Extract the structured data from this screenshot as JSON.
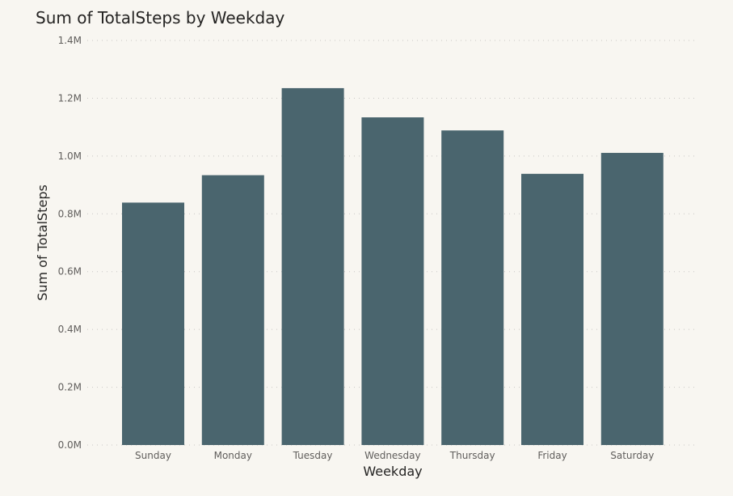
{
  "chart_data": {
    "type": "bar",
    "title": "Sum of TotalSteps by Weekday",
    "xlabel": "Weekday",
    "ylabel": "Sum of TotalSteps",
    "categories": [
      "Sunday",
      "Monday",
      "Tuesday",
      "Wednesday",
      "Thursday",
      "Friday",
      "Saturday"
    ],
    "values": [
      838921,
      933704,
      1235001,
      1133906,
      1088658,
      938477,
      1010969
    ],
    "ylim": [
      0,
      1400000
    ],
    "yticks": [
      0,
      200000,
      400000,
      600000,
      800000,
      1000000,
      1200000,
      1400000
    ],
    "ytick_labels": [
      "0.0M",
      "0.2M",
      "0.4M",
      "0.6M",
      "0.8M",
      "1.0M",
      "1.2M",
      "1.4M"
    ],
    "grid": true,
    "legend": "none",
    "colors": {
      "bar": "#4a656e",
      "background": "#f8f6f1"
    }
  }
}
